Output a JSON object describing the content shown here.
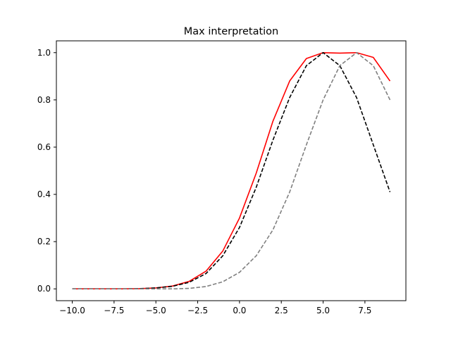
{
  "chart_data": {
    "type": "line",
    "title": "Max interpretation",
    "xlabel": "",
    "ylabel": "",
    "xlim": [
      -10.95,
      9.95
    ],
    "ylim": [
      -0.05,
      1.05
    ],
    "grid": false,
    "x_ticks": [
      -10.0,
      -7.5,
      -5.0,
      -2.5,
      0.0,
      2.5,
      5.0,
      7.5
    ],
    "x_tick_labels": [
      "−10.0",
      "−7.5",
      "−5.0",
      "−2.5",
      "0.0",
      "2.5",
      "5.0",
      "7.5"
    ],
    "y_ticks": [
      0.0,
      0.2,
      0.4,
      0.6,
      0.8,
      1.0
    ],
    "y_tick_labels": [
      "0.0",
      "0.2",
      "0.4",
      "0.6",
      "0.8",
      "1.0"
    ],
    "x": [
      -10,
      -9,
      -8,
      -7,
      -6,
      -5,
      -4,
      -3,
      -2,
      -1,
      0,
      1,
      2,
      3,
      4,
      5,
      6,
      7,
      8,
      9
    ],
    "series": [
      {
        "color": "#ff0000",
        "style": "solid",
        "values": [
          0.0,
          0.0,
          0.0,
          0.0,
          0.001,
          0.004,
          0.012,
          0.032,
          0.075,
          0.16,
          0.3,
          0.49,
          0.71,
          0.88,
          0.975,
          1.0,
          0.998,
          1.0,
          0.98,
          0.88
        ]
      },
      {
        "color": "#000000",
        "style": "dashed",
        "values": [
          0.0,
          0.0,
          0.0,
          0.0,
          0.001,
          0.004,
          0.011,
          0.028,
          0.065,
          0.14,
          0.26,
          0.43,
          0.63,
          0.81,
          0.945,
          1.0,
          0.945,
          0.81,
          0.61,
          0.41
        ]
      },
      {
        "color": "#808080",
        "style": "dashed",
        "values": [
          0.0,
          0.0,
          0.0,
          0.0,
          0.0,
          0.0,
          0.0,
          0.002,
          0.01,
          0.03,
          0.07,
          0.14,
          0.25,
          0.41,
          0.61,
          0.8,
          0.945,
          1.0,
          0.945,
          0.8
        ]
      }
    ]
  }
}
